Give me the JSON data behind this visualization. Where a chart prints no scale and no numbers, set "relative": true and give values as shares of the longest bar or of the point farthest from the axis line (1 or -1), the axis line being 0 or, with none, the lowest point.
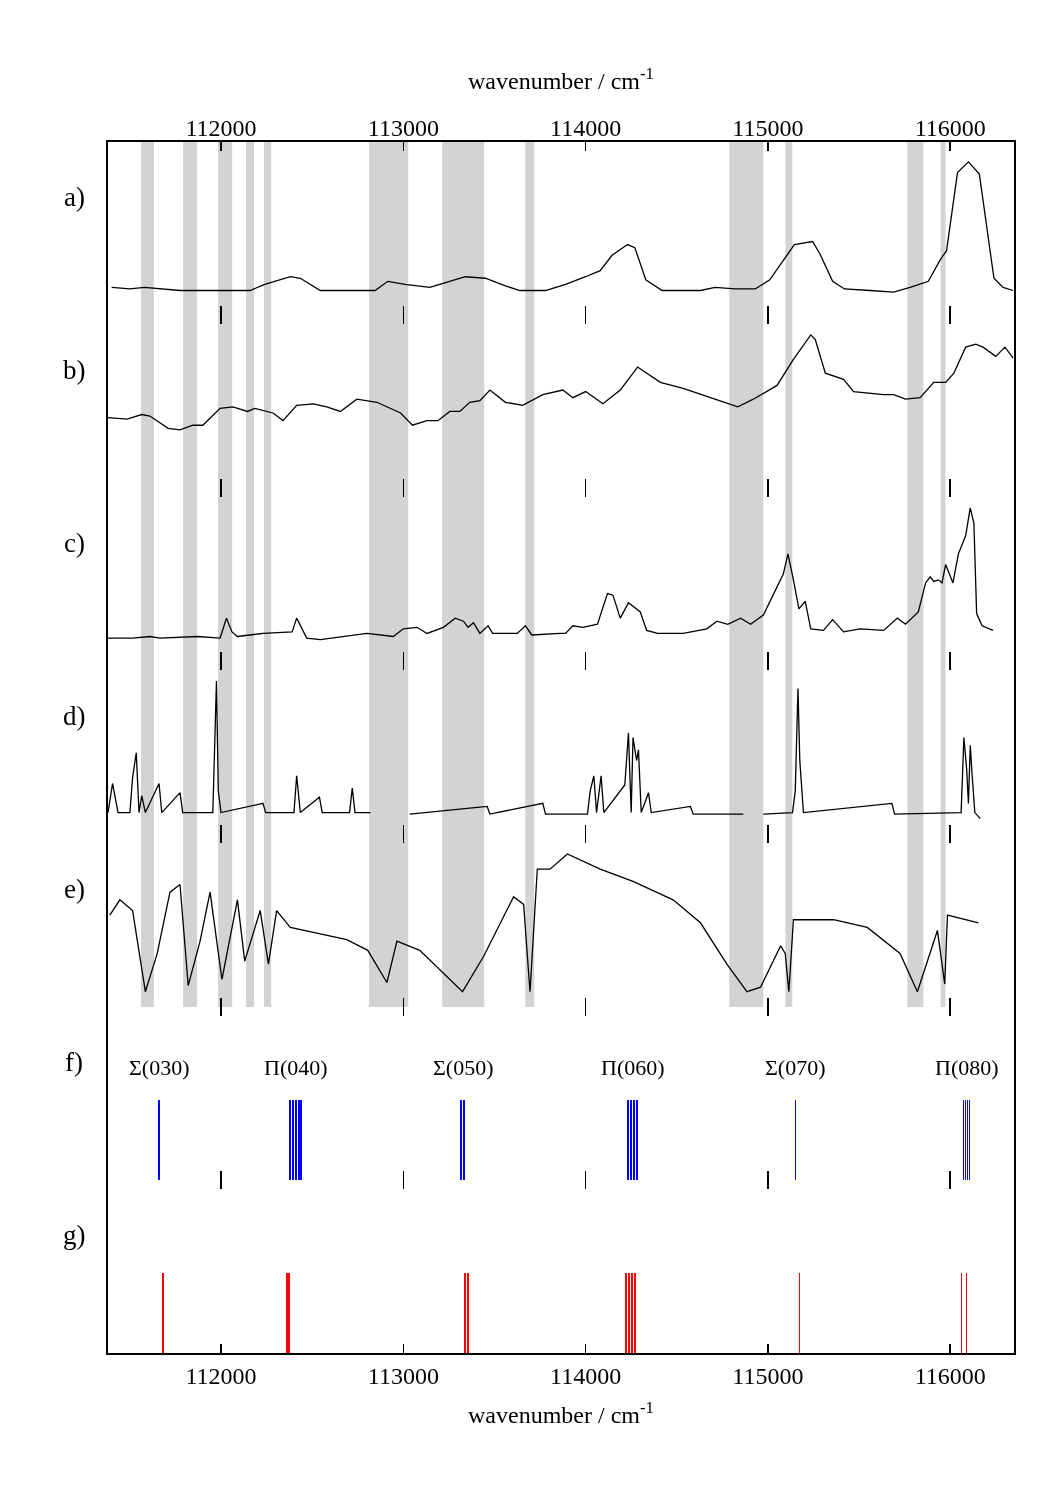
{
  "chart_data": [
    {
      "type": "line",
      "title": "a)",
      "relative": true,
      "color": "#000000",
      "xlim": [
        111380,
        116350
      ],
      "x2lim": [
        111380,
        116350
      ],
      "x2ticks": [
        112000,
        113000,
        114000,
        115000,
        116000
      ],
      "x2label": "wavenumber / cm$^{-1}$",
      "x": [
        111400,
        111500,
        111580,
        111775,
        112160,
        112240,
        112380,
        112435,
        112545,
        112845,
        112915,
        113010,
        113145,
        113200,
        113340,
        113450,
        113560,
        113640,
        113780,
        113890,
        114000,
        114080,
        114145,
        114230,
        114270,
        114330,
        114420,
        114630,
        114710,
        114820,
        114930,
        115010,
        115075,
        115145,
        115245,
        115285,
        115355,
        115420,
        115560,
        115690,
        115780,
        115880,
        115945,
        115980,
        116040,
        116100,
        116160,
        116240,
        116290,
        116345
      ],
      "values": [
        0.18,
        0.17,
        0.18,
        0.16,
        0.16,
        0.2,
        0.25,
        0.24,
        0.16,
        0.16,
        0.22,
        0.2,
        0.18,
        0.2,
        0.25,
        0.24,
        0.19,
        0.16,
        0.16,
        0.2,
        0.25,
        0.29,
        0.39,
        0.46,
        0.44,
        0.23,
        0.16,
        0.16,
        0.18,
        0.17,
        0.17,
        0.23,
        0.34,
        0.46,
        0.48,
        0.4,
        0.22,
        0.17,
        0.16,
        0.15,
        0.18,
        0.22,
        0.36,
        0.42,
        0.93,
        1,
        0.92,
        0.24,
        0.18,
        0.16
      ],
      "bands": [
        {
          "axis": "x",
          "from": 111561,
          "to": 111632,
          "color": "#d3d3d3"
        },
        {
          "axis": "x",
          "from": 111792,
          "to": 111868,
          "color": "#d3d3d3"
        },
        {
          "axis": "x",
          "from": 111984,
          "to": 112061,
          "color": "#d3d3d3"
        },
        {
          "axis": "x",
          "from": 112137,
          "to": 112181,
          "color": "#d3d3d3"
        },
        {
          "axis": "x",
          "from": 112236,
          "to": 112275,
          "color": "#d3d3d3"
        },
        {
          "axis": "x",
          "from": 112812,
          "to": 113027,
          "color": "#d3d3d3"
        },
        {
          "axis": "x",
          "from": 113213,
          "to": 113444,
          "color": "#d3d3d3"
        },
        {
          "axis": "x",
          "from": 113669,
          "to": 113718,
          "color": "#d3d3d3"
        },
        {
          "axis": "x",
          "from": 114788,
          "to": 114975,
          "color": "#d3d3d3"
        },
        {
          "axis": "x",
          "from": 115096,
          "to": 115134,
          "color": "#d3d3d3"
        },
        {
          "axis": "x",
          "from": 115765,
          "to": 115853,
          "color": "#d3d3d3"
        },
        {
          "axis": "x",
          "from": 115947,
          "to": 115974,
          "color": "#d3d3d3"
        }
      ]
    },
    {
      "type": "line",
      "title": "b)",
      "relative": true,
      "color": "#000000",
      "xlim": [
        111380,
        116350
      ],
      "xticks": [
        112000,
        113000,
        114000,
        115000,
        116000
      ],
      "tick_labels": false,
      "x": [
        111380,
        111485,
        111565,
        111610,
        111710,
        111775,
        111845,
        111900,
        111995,
        112065,
        112145,
        112185,
        112285,
        112340,
        112415,
        112505,
        112580,
        112655,
        112745,
        112855,
        112985,
        113050,
        113130,
        113190,
        113255,
        113310,
        113365,
        113420,
        113475,
        113560,
        113655,
        113765,
        113875,
        113930,
        114000,
        114095,
        114190,
        114285,
        114410,
        114535,
        114685,
        114835,
        114920,
        115050,
        115140,
        115235,
        115260,
        115315,
        115415,
        115470,
        115635,
        115690,
        115755,
        115835,
        115910,
        115975,
        116020,
        116085,
        116140,
        116180,
        116250,
        116300,
        116345
      ],
      "values": [
        0.46,
        0.45,
        0.48,
        0.47,
        0.39,
        0.38,
        0.41,
        0.41,
        0.52,
        0.53,
        0.5,
        0.52,
        0.49,
        0.44,
        0.54,
        0.55,
        0.53,
        0.5,
        0.58,
        0.56,
        0.49,
        0.41,
        0.44,
        0.44,
        0.5,
        0.5,
        0.56,
        0.57,
        0.64,
        0.56,
        0.54,
        0.61,
        0.64,
        0.59,
        0.63,
        0.55,
        0.64,
        0.79,
        0.69,
        0.65,
        0.59,
        0.53,
        0.58,
        0.67,
        0.84,
        1,
        0.97,
        0.75,
        0.71,
        0.63,
        0.61,
        0.61,
        0.58,
        0.59,
        0.69,
        0.69,
        0.75,
        0.92,
        0.94,
        0.92,
        0.86,
        0.92,
        0.85
      ],
      "bands": [
        {
          "axis": "x",
          "from": 111561,
          "to": 111632,
          "color": "#d3d3d3"
        },
        {
          "axis": "x",
          "from": 111792,
          "to": 111868,
          "color": "#d3d3d3"
        },
        {
          "axis": "x",
          "from": 111984,
          "to": 112061,
          "color": "#d3d3d3"
        },
        {
          "axis": "x",
          "from": 112137,
          "to": 112181,
          "color": "#d3d3d3"
        },
        {
          "axis": "x",
          "from": 112236,
          "to": 112275,
          "color": "#d3d3d3"
        },
        {
          "axis": "x",
          "from": 112812,
          "to": 113027,
          "color": "#d3d3d3"
        },
        {
          "axis": "x",
          "from": 113213,
          "to": 113444,
          "color": "#d3d3d3"
        },
        {
          "axis": "x",
          "from": 113669,
          "to": 113718,
          "color": "#d3d3d3"
        },
        {
          "axis": "x",
          "from": 114788,
          "to": 114975,
          "color": "#d3d3d3"
        },
        {
          "axis": "x",
          "from": 115096,
          "to": 115134,
          "color": "#d3d3d3"
        },
        {
          "axis": "x",
          "from": 115765,
          "to": 115853,
          "color": "#d3d3d3"
        },
        {
          "axis": "x",
          "from": 115947,
          "to": 115974,
          "color": "#d3d3d3"
        }
      ]
    },
    {
      "type": "line",
      "title": "c)",
      "relative": true,
      "color": "#000000",
      "xlim": [
        111380,
        116350
      ],
      "xticks": [
        112000,
        113000,
        114000,
        115000,
        116000
      ],
      "tick_labels": false,
      "x": [
        111380,
        111515,
        111610,
        111665,
        111870,
        111995,
        112030,
        112060,
        112090,
        112230,
        112390,
        112415,
        112470,
        112545,
        112800,
        112945,
        113000,
        113075,
        113130,
        113220,
        113285,
        113330,
        113355,
        113385,
        113420,
        113465,
        113490,
        113625,
        113670,
        113705,
        113860,
        113890,
        113930,
        113985,
        114065,
        114120,
        114150,
        114190,
        114235,
        114300,
        114335,
        114395,
        114535,
        114665,
        114720,
        114780,
        114850,
        114905,
        114975,
        115085,
        115110,
        115140,
        115170,
        115205,
        115235,
        115305,
        115355,
        115415,
        115505,
        115635,
        115710,
        115755,
        115825,
        115865,
        115890,
        115910,
        115935,
        115955,
        115975,
        116015,
        116045,
        116085,
        116110,
        116130,
        116145,
        116175,
        116235
      ],
      "values": [
        0.15,
        0.15,
        0.16,
        0.15,
        0.16,
        0.15,
        0.28,
        0.19,
        0.16,
        0.18,
        0.19,
        0.28,
        0.15,
        0.14,
        0.18,
        0.16,
        0.21,
        0.22,
        0.18,
        0.22,
        0.28,
        0.26,
        0.22,
        0.25,
        0.18,
        0.23,
        0.18,
        0.18,
        0.23,
        0.17,
        0.18,
        0.18,
        0.23,
        0.22,
        0.24,
        0.44,
        0.43,
        0.28,
        0.38,
        0.32,
        0.2,
        0.18,
        0.18,
        0.21,
        0.26,
        0.24,
        0.28,
        0.24,
        0.3,
        0.57,
        0.7,
        0.53,
        0.34,
        0.39,
        0.21,
        0.2,
        0.27,
        0.19,
        0.21,
        0.2,
        0.28,
        0.24,
        0.32,
        0.51,
        0.55,
        0.52,
        0.53,
        0.51,
        0.63,
        0.51,
        0.7,
        0.82,
        1,
        0.9,
        0.31,
        0.23,
        0.2
      ],
      "bands": [
        {
          "axis": "x",
          "from": 111561,
          "to": 111632,
          "color": "#d3d3d3"
        },
        {
          "axis": "x",
          "from": 111792,
          "to": 111868,
          "color": "#d3d3d3"
        },
        {
          "axis": "x",
          "from": 111984,
          "to": 112061,
          "color": "#d3d3d3"
        },
        {
          "axis": "x",
          "from": 112137,
          "to": 112181,
          "color": "#d3d3d3"
        },
        {
          "axis": "x",
          "from": 112236,
          "to": 112275,
          "color": "#d3d3d3"
        },
        {
          "axis": "x",
          "from": 112812,
          "to": 113027,
          "color": "#d3d3d3"
        },
        {
          "axis": "x",
          "from": 113213,
          "to": 113444,
          "color": "#d3d3d3"
        },
        {
          "axis": "x",
          "from": 113669,
          "to": 113718,
          "color": "#d3d3d3"
        },
        {
          "axis": "x",
          "from": 114788,
          "to": 114975,
          "color": "#d3d3d3"
        },
        {
          "axis": "x",
          "from": 115096,
          "to": 115134,
          "color": "#d3d3d3"
        },
        {
          "axis": "x",
          "from": 115765,
          "to": 115853,
          "color": "#d3d3d3"
        },
        {
          "axis": "x",
          "from": 115947,
          "to": 115974,
          "color": "#d3d3d3"
        }
      ]
    },
    {
      "type": "line",
      "title": "d)",
      "relative": true,
      "color": "#000000",
      "xlim": [
        111380,
        116350
      ],
      "xticks": [
        112000,
        113000,
        114000,
        115000,
        116000
      ],
      "tick_labels": false,
      "x": [
        111380,
        111405,
        111435,
        111500,
        111515,
        111535,
        111550,
        111565,
        111585,
        111660,
        111675,
        111775,
        111790,
        111855,
        111955,
        111975,
        111985,
        112000,
        112230,
        112245,
        112400,
        112415,
        112435,
        112540,
        112555,
        112705,
        112720,
        112735,
        112820,
        112900,
        113035,
        113460,
        113475,
        113765,
        113780,
        114010,
        114025,
        114045,
        114060,
        114085,
        114100,
        114215,
        114235,
        114250,
        114260,
        114280,
        114290,
        114305,
        114345,
        114360,
        114575,
        114590,
        114865,
        114920,
        114975,
        115135,
        115150,
        115165,
        115175,
        115195,
        115680,
        115695,
        116060,
        116075,
        116090,
        116100,
        116110,
        116120,
        116135,
        116165
      ],
      "values": [
        0.14,
        0.33,
        0.14,
        0.14,
        0.37,
        0.53,
        0.14,
        0.25,
        0.14,
        0.33,
        0.14,
        0.27,
        0.14,
        0.14,
        0.14,
        1,
        0.28,
        0.14,
        0.2,
        0.14,
        0.14,
        0.38,
        0.14,
        0.24,
        0.14,
        0.14,
        0.3,
        0.14,
        0.14,
        null,
        0.13,
        0.18,
        0.13,
        0.2,
        0.13,
        0.13,
        0.28,
        0.38,
        0.14,
        0.38,
        0.14,
        0.32,
        0.66,
        0.14,
        0.63,
        0.48,
        0.55,
        0.14,
        0.27,
        0.14,
        0.18,
        0.13,
        0.13,
        null,
        0.13,
        0.14,
        0.28,
        0.95,
        0.48,
        0.14,
        0.2,
        0.13,
        0.14,
        0.63,
        0.43,
        0.2,
        0.58,
        0.39,
        0.14,
        0.1
      ],
      "bands": [
        {
          "axis": "x",
          "from": 111561,
          "to": 111632,
          "color": "#d3d3d3"
        },
        {
          "axis": "x",
          "from": 111792,
          "to": 111868,
          "color": "#d3d3d3"
        },
        {
          "axis": "x",
          "from": 111984,
          "to": 112061,
          "color": "#d3d3d3"
        },
        {
          "axis": "x",
          "from": 112137,
          "to": 112181,
          "color": "#d3d3d3"
        },
        {
          "axis": "x",
          "from": 112236,
          "to": 112275,
          "color": "#d3d3d3"
        },
        {
          "axis": "x",
          "from": 112812,
          "to": 113027,
          "color": "#d3d3d3"
        },
        {
          "axis": "x",
          "from": 113213,
          "to": 113444,
          "color": "#d3d3d3"
        },
        {
          "axis": "x",
          "from": 113669,
          "to": 113718,
          "color": "#d3d3d3"
        },
        {
          "axis": "x",
          "from": 114788,
          "to": 114975,
          "color": "#d3d3d3"
        },
        {
          "axis": "x",
          "from": 115096,
          "to": 115134,
          "color": "#d3d3d3"
        },
        {
          "axis": "x",
          "from": 115765,
          "to": 115853,
          "color": "#d3d3d3"
        },
        {
          "axis": "x",
          "from": 115947,
          "to": 115974,
          "color": "#d3d3d3"
        }
      ]
    },
    {
      "type": "line",
      "title": "e)",
      "relative": true,
      "color": "#000000",
      "xlim": [
        111380,
        116350
      ],
      "xticks": [
        112000,
        113000,
        114000,
        115000,
        116000
      ],
      "tick_labels": false,
      "x": [
        111390,
        111445,
        111515,
        111585,
        111650,
        111720,
        111775,
        111820,
        111885,
        111940,
        112005,
        112090,
        112130,
        112215,
        112260,
        112305,
        112380,
        112690,
        112805,
        112910,
        112965,
        113090,
        113325,
        113440,
        113605,
        113660,
        113695,
        113735,
        113805,
        113900,
        114080,
        114260,
        114480,
        114630,
        114775,
        114885,
        114960,
        115070,
        115095,
        115115,
        115140,
        115360,
        115545,
        115725,
        115820,
        115930,
        115970,
        115985,
        116155
      ],
      "values": [
        0.6,
        0.7,
        0.63,
        0.1,
        0.35,
        0.75,
        0.8,
        0.14,
        0.43,
        0.75,
        0.18,
        0.7,
        0.3,
        0.63,
        0.28,
        0.63,
        0.52,
        0.44,
        0.37,
        0.16,
        0.43,
        0.37,
        0.1,
        0.33,
        0.72,
        0.67,
        0.1,
        0.9,
        0.9,
        1,
        0.9,
        0.82,
        0.7,
        0.55,
        0.28,
        0.1,
        0.13,
        0.4,
        0.35,
        0.1,
        0.57,
        0.57,
        0.52,
        0.35,
        0.1,
        0.5,
        0.15,
        0.6,
        0.55
      ],
      "bands": [
        {
          "axis": "x",
          "from": 111561,
          "to": 111632,
          "color": "#d3d3d3"
        },
        {
          "axis": "x",
          "from": 111792,
          "to": 111868,
          "color": "#d3d3d3"
        },
        {
          "axis": "x",
          "from": 111984,
          "to": 112061,
          "color": "#d3d3d3"
        },
        {
          "axis": "x",
          "from": 112137,
          "to": 112181,
          "color": "#d3d3d3"
        },
        {
          "axis": "x",
          "from": 112236,
          "to": 112275,
          "color": "#d3d3d3"
        },
        {
          "axis": "x",
          "from": 112812,
          "to": 113027,
          "color": "#d3d3d3"
        },
        {
          "axis": "x",
          "from": 113213,
          "to": 113444,
          "color": "#d3d3d3"
        },
        {
          "axis": "x",
          "from": 113669,
          "to": 113718,
          "color": "#d3d3d3"
        },
        {
          "axis": "x",
          "from": 114788,
          "to": 114975,
          "color": "#d3d3d3"
        },
        {
          "axis": "x",
          "from": 115096,
          "to": 115134,
          "color": "#d3d3d3"
        },
        {
          "axis": "x",
          "from": 115765,
          "to": 115853,
          "color": "#d3d3d3"
        },
        {
          "axis": "x",
          "from": 115947,
          "to": 115974,
          "color": "#d3d3d3"
        }
      ]
    },
    {
      "type": "bar",
      "title": "f)",
      "relative": true,
      "color": "#0000ff",
      "xlim": [
        111380,
        116350
      ],
      "xticks": [
        112000,
        113000,
        114000,
        115000,
        116000
      ],
      "tick_labels": false,
      "x": [
        111660,
        112379,
        112396,
        112412,
        112429,
        112440,
        113317,
        113334,
        114234,
        114250,
        114267,
        114283,
        115151,
        116073,
        116084,
        116095,
        116106
      ],
      "values": [
        1,
        1,
        1,
        1,
        1,
        1,
        1,
        1,
        1,
        1,
        1,
        1,
        1,
        1,
        1,
        1,
        1
      ],
      "annotations": [
        "Σ(030)",
        "Π(040)",
        "Σ(050)",
        "Π(060)",
        "Σ(070)",
        "Π(080)"
      ]
    },
    {
      "type": "bar",
      "title": "g)",
      "relative": true,
      "color": "#ff0000",
      "xlim": [
        111380,
        116350
      ],
      "xticks": [
        112000,
        113000,
        114000,
        115000,
        116000
      ],
      "xlabel": "wavenumber / cm$^{-1}$",
      "x": [
        111682,
        112362,
        112373,
        113339,
        113356,
        114223,
        114239,
        114256,
        114272,
        115173,
        116062,
        116089
      ],
      "values": [
        1,
        1,
        1,
        1,
        1,
        1,
        1,
        1,
        1,
        1,
        1,
        1
      ]
    }
  ]
}
